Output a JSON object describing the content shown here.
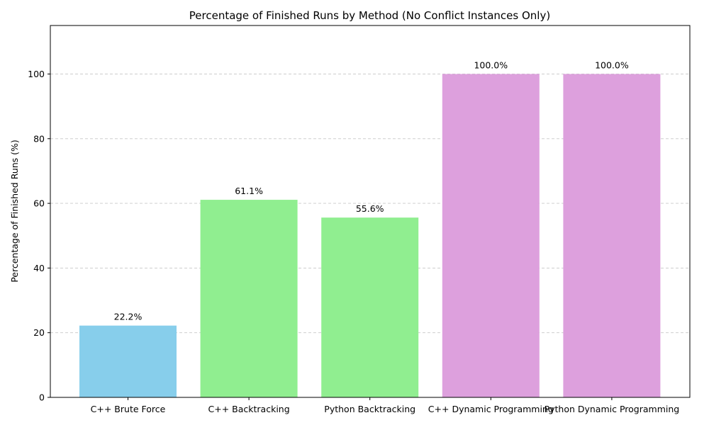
{
  "chart_data": {
    "type": "bar",
    "title": "Percentage of Finished Runs by Method (No Conflict Instances Only)",
    "xlabel": "",
    "ylabel": "Percentage of Finished Runs (%)",
    "categories": [
      "C++ Brute Force",
      "C++ Backtracking",
      "Python Backtracking",
      "C++ Dynamic Programming",
      "Python Dynamic Programming"
    ],
    "values": [
      22.2,
      61.1,
      55.6,
      100.0,
      100.0
    ],
    "data_labels": [
      "22.2%",
      "61.1%",
      "55.6%",
      "100.0%",
      "100.0%"
    ],
    "colors": [
      "#87CEEB",
      "#90EE90",
      "#90EE90",
      "#DDA0DD",
      "#DDA0DD"
    ],
    "ylim": [
      0,
      115
    ],
    "yticks": [
      0,
      20,
      40,
      60,
      80,
      100
    ],
    "grid": "y-dashed",
    "legend": "none"
  }
}
